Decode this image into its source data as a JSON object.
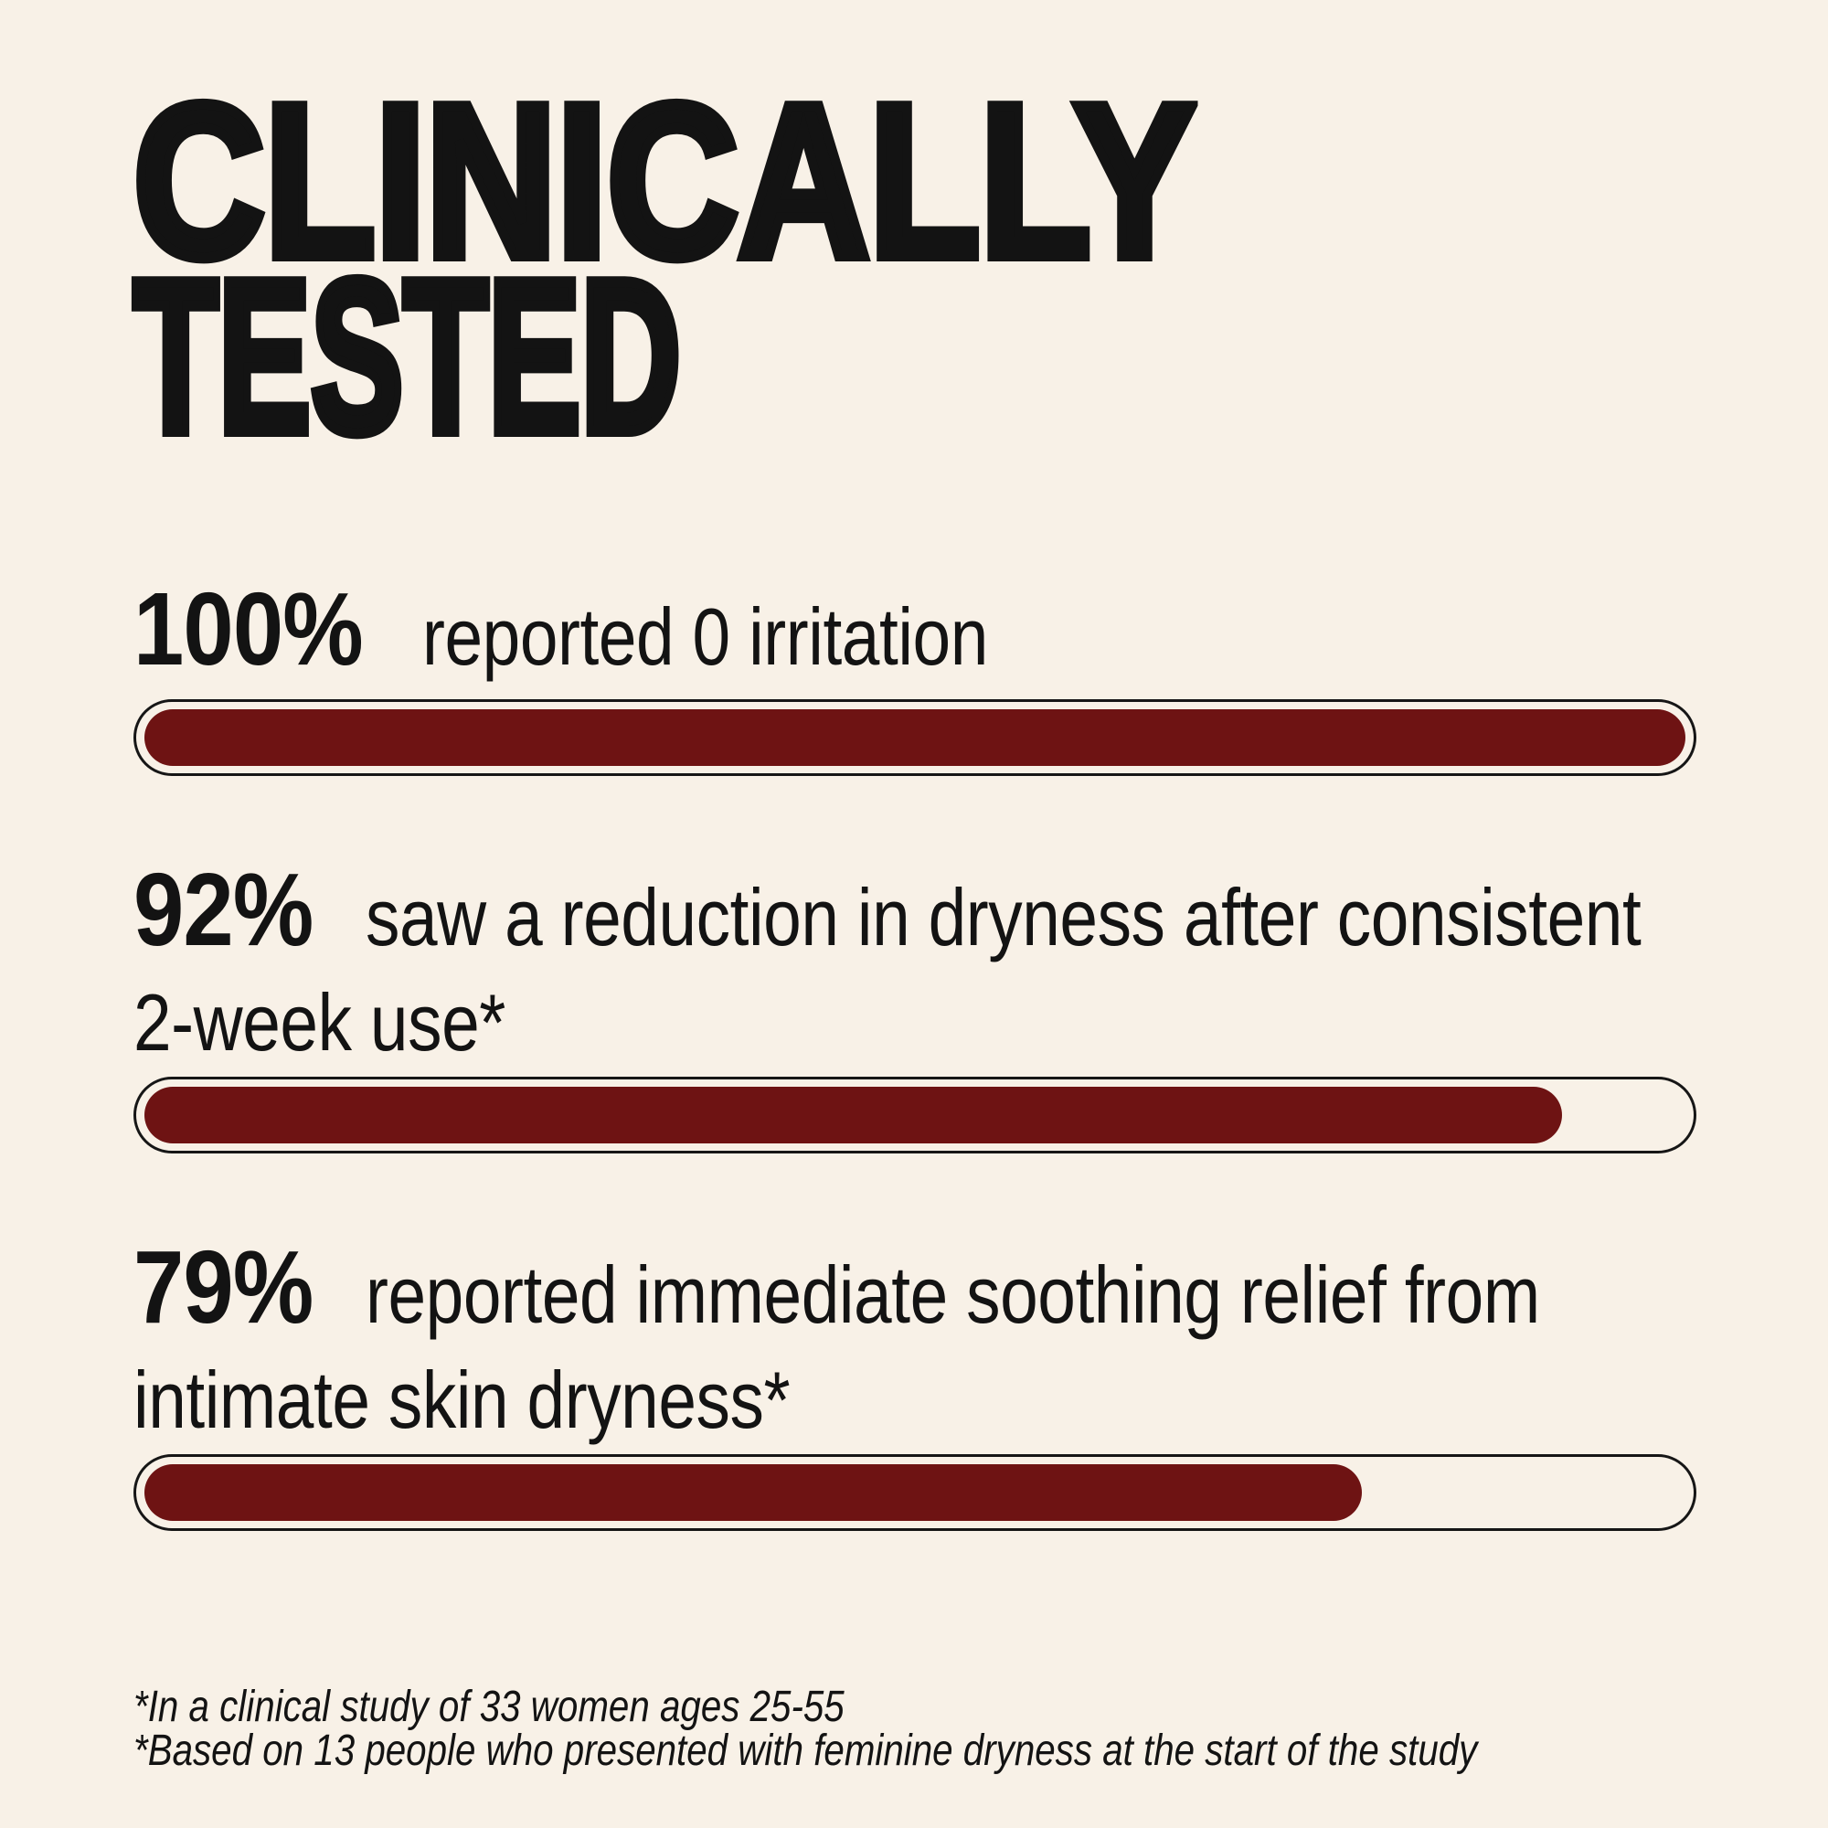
{
  "title": {
    "line1": "CLINICALLY",
    "line2": "TESTED"
  },
  "stats": [
    {
      "value": "100%",
      "desc_line1": "reported 0 irritation",
      "fill_percent": 100
    },
    {
      "value": "92%",
      "desc_line1": "saw a reduction in dryness after consistent",
      "desc_line2": "2-week use*",
      "fill_percent": 92
    },
    {
      "value": "79%",
      "desc_line1": "reported immediate soothing relief from",
      "desc_line2": "intimate skin dryness*",
      "fill_percent": 79
    }
  ],
  "footnotes": [
    "*In a clinical study of 33 women ages 25-55",
    "*Based on 13 people who presented with feminine dryness at the start of the study"
  ],
  "colors": {
    "background": "#F8F1E7",
    "text": "#131313",
    "bar_fill": "#6E1313",
    "bar_border": "#161616"
  },
  "chart_data": {
    "type": "bar",
    "orientation": "horizontal",
    "title": "CLINICALLY TESTED",
    "categories": [
      "reported 0 irritation",
      "saw a reduction in dryness after consistent 2-week use*",
      "reported immediate soothing relief from intimate skin dryness*"
    ],
    "values": [
      100,
      92,
      79
    ],
    "value_labels": [
      "100%",
      "92%",
      "79%"
    ],
    "unit": "%",
    "xlim": [
      0,
      100
    ],
    "grid": false,
    "legend": false,
    "bar_color": "#6E1313",
    "annotations": [
      "*In a clinical study of 33 women ages 25-55",
      "*Based on 13 people who presented with feminine dryness at the start of the study"
    ]
  }
}
